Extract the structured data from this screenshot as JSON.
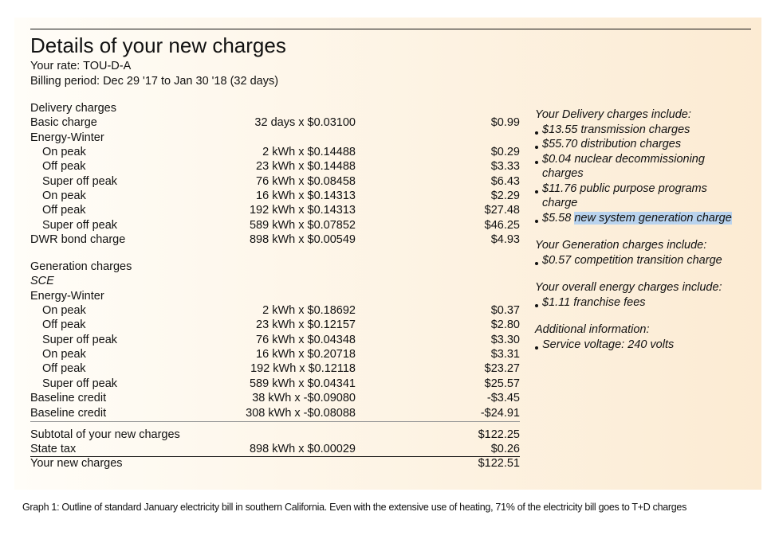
{
  "header": {
    "title": "Details of your new charges",
    "rate": "Your rate: TOU-D-A",
    "period": "Billing period: Dec 29 '17 to Jan 30 '18 (32 days)"
  },
  "delivery": {
    "heading": "Delivery  charges",
    "items": [
      {
        "label": "Basic charge",
        "calc": "32 days x $0.03100",
        "amount": "$0.99"
      },
      {
        "label": "Energy-Winter",
        "rows": [
          {
            "label": "On peak",
            "calc": "2 kWh x $0.14488",
            "amount": "$0.29"
          },
          {
            "label": "Off peak",
            "calc": "23 kWh x $0.14488",
            "amount": "$3.33"
          },
          {
            "label": "Super off peak",
            "calc": "76 kWh x $0.08458",
            "amount": "$6.43"
          },
          {
            "label": "On peak",
            "calc": "16 kWh x $0.14313",
            "amount": "$2.29"
          },
          {
            "label": "Off peak",
            "calc": "192 kWh x $0.14313",
            "amount": "$27.48"
          },
          {
            "label": "Super off peak",
            "calc": "589 kWh x $0.07852",
            "amount": "$46.25"
          }
        ]
      },
      {
        "label": "DWR bond charge",
        "calc": "898 kWh x $0.00549",
        "amount": "$4.93"
      }
    ]
  },
  "generation": {
    "heading": "Generation  charges",
    "provider": "SCE",
    "items": [
      {
        "label": "Energy-Winter",
        "rows": [
          {
            "label": "On peak",
            "calc": "2 kWh x $0.18692",
            "amount": "$0.37"
          },
          {
            "label": "Off peak",
            "calc": "23 kWh x $0.12157",
            "amount": "$2.80"
          },
          {
            "label": "Super off peak",
            "calc": "76 kWh x $0.04348",
            "amount": "$3.30"
          },
          {
            "label": "On peak",
            "calc": "16 kWh x $0.20718",
            "amount": "$3.31"
          },
          {
            "label": "Off peak",
            "calc": "192 kWh x $0.12118",
            "amount": "$23.27"
          },
          {
            "label": "Super off peak",
            "calc": "589 kWh x $0.04341",
            "amount": "$25.57"
          }
        ]
      },
      {
        "label": "Baseline credit",
        "calc": "38 kWh x -$0.09080",
        "amount": "-$3.45"
      },
      {
        "label": "Baseline credit",
        "calc": "308 kWh x -$0.08088",
        "amount": "-$24.91"
      }
    ]
  },
  "totals": {
    "subtotal": {
      "label": "Subtotal of your new charges",
      "amount": "$122.25"
    },
    "tax": {
      "label": "State tax",
      "calc": "898 kWh x $0.00029",
      "amount": "$0.26"
    },
    "total": {
      "label": "Your  new charges",
      "amount": "$122.51"
    }
  },
  "sidebar": [
    {
      "heading": "Your Delivery charges include:",
      "bullets": [
        {
          "text": "$13.55 transmission charges"
        },
        {
          "text": "$55.70 distribution charges"
        },
        {
          "text": "$0.04 nuclear decommissioning charges"
        },
        {
          "text": "$11.76 public purpose programs charge"
        },
        {
          "text": "$5.58",
          "highlight": "new system generation charge"
        }
      ]
    },
    {
      "heading": "Your Generation  charges include:",
      "bullets": [
        {
          "text": "$0.57 competition transition charge"
        }
      ]
    },
    {
      "heading": "Your overall energy charges include:",
      "bullets": [
        {
          "text": "$1.11 franchise fees"
        }
      ]
    },
    {
      "heading": "Additional   information:",
      "bullets": [
        {
          "text": "Service voltage: 240 volts"
        }
      ]
    }
  ],
  "caption": "Graph 1: Outline of standard January electricity bill in southern California. Even with the extensive use of heating, 71% of the electricity bill goes to T+D charges"
}
